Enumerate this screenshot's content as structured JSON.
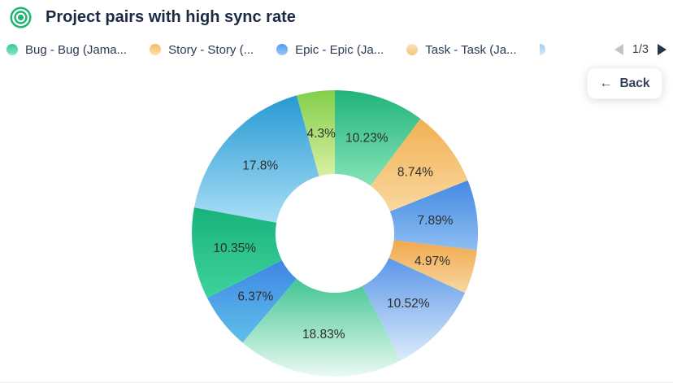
{
  "header": {
    "icon": "target-icon",
    "icon_color": "#1fb573",
    "title": "Project pairs with high sync rate"
  },
  "legend": {
    "items": [
      {
        "label": "Bug - Bug (Jama...",
        "dot_color_top": "#35c992",
        "dot_color_bottom": "#8ae9c2"
      },
      {
        "label": "Story - Story (...",
        "dot_color_top": "#f4bb61",
        "dot_color_bottom": "#fbe2ae"
      },
      {
        "label": "Epic - Epic (Ja...",
        "dot_color_top": "#4d9bf0",
        "dot_color_bottom": "#9ccaf7"
      },
      {
        "label": "Task - Task (Ja...",
        "dot_color_top": "#fbe3b8",
        "dot_color_bottom": "#f6c47e"
      }
    ],
    "overflow_item": {
      "dot_color_top": "#9fcdef",
      "dot_color_bottom": "#d6eafc"
    },
    "pagination": {
      "page_label": "1/3",
      "prev_enabled": false,
      "next_enabled": true
    }
  },
  "back_button": {
    "arrow": "←",
    "label": "Back"
  },
  "chart_data": {
    "type": "pie",
    "subtype": "donut",
    "title": "Project pairs with high sync rate",
    "direction": "clockwise",
    "start_angle_deg": 0,
    "inner_radius_ratio": 0.415,
    "legend_position": "top",
    "values": [
      10.23,
      8.74,
      7.89,
      4.97,
      10.52,
      18.83,
      6.37,
      10.35,
      17.8,
      4.3
    ],
    "labels": [
      "10.23%",
      "8.74%",
      "7.89%",
      "4.97%",
      "10.52%",
      "18.83%",
      "6.37%",
      "10.35%",
      "17.8%",
      "4.3%"
    ],
    "slice_colors": [
      {
        "top": "#21b37b",
        "bottom": "#86e4b7"
      },
      {
        "top": "#f2b053",
        "bottom": "#f9d89f"
      },
      {
        "top": "#4489e2",
        "bottom": "#8dbef2"
      },
      {
        "top": "#f0a84c",
        "bottom": "#f8d8a2"
      },
      {
        "top": "#5b97e8",
        "bottom": "#dcebfb"
      },
      {
        "top": "#42c593",
        "bottom": "#ebfaf3"
      },
      {
        "top": "#3f85e6",
        "bottom": "#5fc0e8"
      },
      {
        "top": "#19b27c",
        "bottom": "#3ed39c"
      },
      {
        "top": "#2799d3",
        "bottom": "#a9def6"
      },
      {
        "top": "#82cf49",
        "bottom": "#d9efa3"
      }
    ],
    "label_color": "#2e2e2e"
  }
}
